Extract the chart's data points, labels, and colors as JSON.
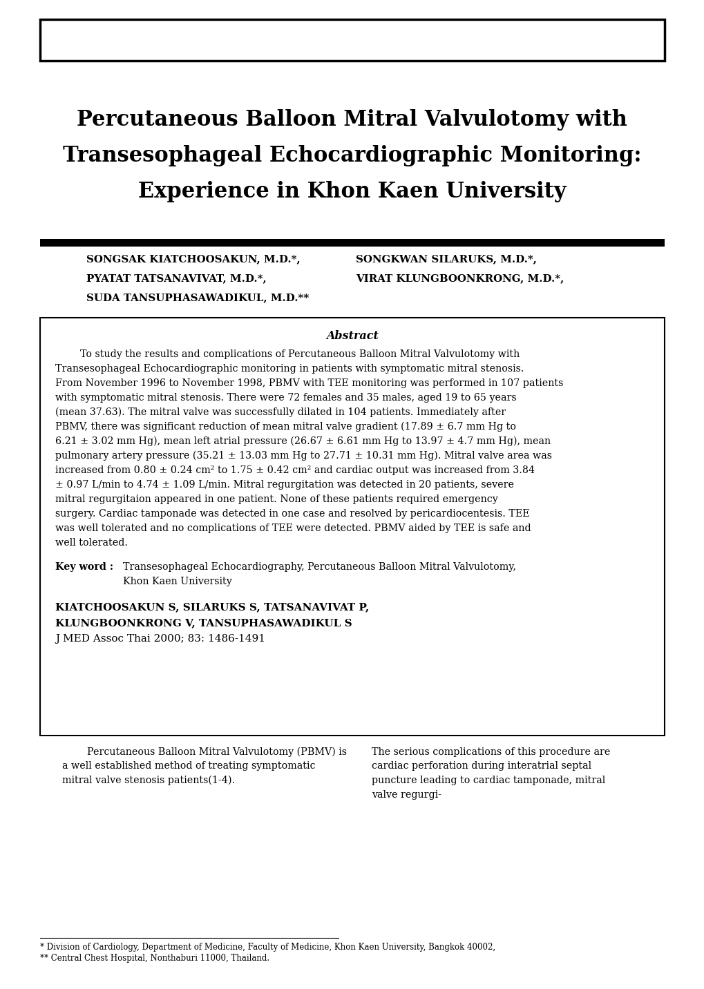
{
  "bg_color": "#ffffff",
  "title_line1": "Percutaneous Balloon Mitral Valvulotomy with",
  "title_line2": "Transesophageal Echocardiographic Monitoring:",
  "title_line3": "Experience in Khon Kaen University",
  "authors_left": [
    "SONGSAK KIATCHOOSAKUN, M.D.*,",
    "PYATAT TATSANAVIVAT, M.D.*,",
    "SUDA TANSUPHASAWADIKUL, M.D.**"
  ],
  "authors_right": [
    "SONGKWAN SILARUKS, M.D.*,",
    "VIRAT KLUNGBOONKRONG, M.D.*,"
  ],
  "abstract_title": "Abstract",
  "abstract_text": "To study the results and complications of Percutaneous Balloon Mitral Valvulotomy with Transesophageal Echocardiographic monitoring in patients with symptomatic mitral stenosis. From November 1996 to November 1998, PBMV with TEE monitoring was performed in 107 patients with symptomatic mitral stenosis. There were 72 females and 35 males, aged 19 to 65 years (mean 37.63). The mitral valve was successfully dilated in 104 patients. Immediately after PBMV, there was significant reduction of mean mitral valve gradient (17.89 ± 6.7 mm Hg to 6.21 ± 3.02 mm Hg), mean left atrial pressure (26.67 ± 6.61 mm Hg to 13.97 ± 4.7 mm Hg), mean pulmonary artery pressure (35.21 ± 13.03 mm Hg to 27.71 ± 10.31 mm Hg). Mitral valve area was increased from 0.80 ± 0.24 cm² to 1.75 ± 0.42 cm² and cardiac output was increased from 3.84 ± 0.97 L/min to 4.74 ± 1.09 L/min. Mitral regurgitation was detected in 20 patients, severe mitral regurgitaion appeared in one patient. None of these patients required emergency surgery. Cardiac tamponade was detected in one case and resolved by pericardiocentesis. TEE was well tolerated and no complications of TEE were detected. PBMV aided by TEE is safe and well tolerated.",
  "keyword_label": "Key word :",
  "keyword_text": "Transesophageal Echocardiography, Percutaneous Balloon Mitral Valvulotomy, Khon Kaen University",
  "citation_line1": "KIATCHOOSAKUN S, SILARUKS S, TATSANAVIVAT P,",
  "citation_line2": "KLUNGBOONKRONG V, TANSUPHASAWADIKUL S",
  "citation_line3": "J MED Assoc Thai 2000; 83: 1486-1491",
  "body_col1": "Percutaneous Balloon Mitral Valvulotomy (PBMV) is a well established method of treating symptomatic mitral valve stenosis patients(1-4).",
  "body_col2": "The serious complications of this procedure are cardiac perforation during interatrial septal puncture leading to cardiac tamponade, mitral valve regurgi-",
  "footnote1": "* Division of Cardiology, Department of Medicine, Faculty of Medicine, Khon Kaen University, Bangkok 40002,",
  "footnote2": "** Central Chest Hospital, Nonthaburi 11000, Thailand."
}
